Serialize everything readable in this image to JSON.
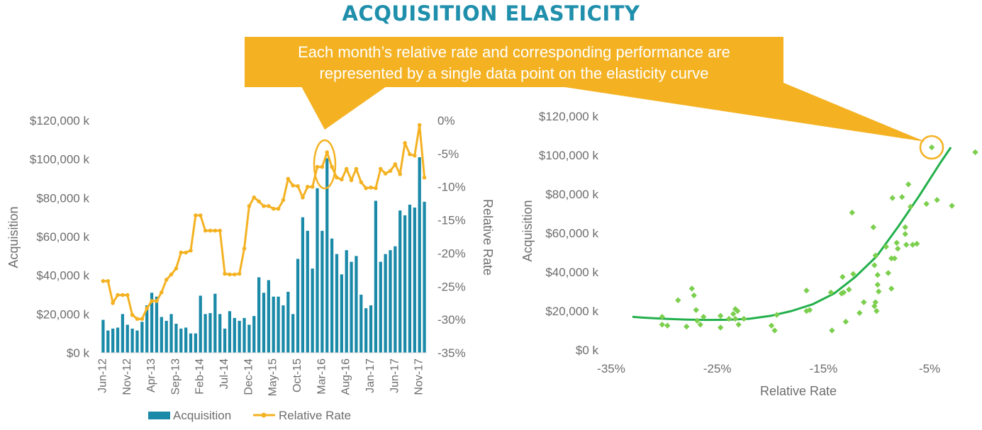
{
  "title": "ACQUISITION ELASTICITY",
  "callout": {
    "line1": "Each month’s relative rate and corresponding performance are",
    "line2": "represented by a single data point on the elasticity curve"
  },
  "colors": {
    "title": "#1f8fac",
    "bar": "#1a8aa8",
    "line": "#f4b223",
    "callout": "#f4b223",
    "scatter": "#7ccf4e",
    "curve": "#22b04b",
    "axis_text": "#6d6d6d"
  },
  "chart_data": [
    {
      "type": "bar+line",
      "xlabel": "",
      "ylabel": "Acquisition",
      "y2label": "Relative Rate",
      "ylim": [
        0,
        120000
      ],
      "y2lim": [
        -35,
        0
      ],
      "yticks": [
        "$0 k",
        "$20,000 k",
        "$40,000 k",
        "$60,000 k",
        "$80,000 k",
        "$100,000 k",
        "$120,000 k"
      ],
      "y2ticks": [
        "-35%",
        "-30%",
        "-25%",
        "-20%",
        "-15%",
        "-10%",
        "-5%",
        "0%"
      ],
      "xticks": [
        "Jun-12",
        "Nov-12",
        "Apr-13",
        "Sep-13",
        "Feb-14",
        "Jul-14",
        "Dec-14",
        "May-15",
        "Oct-15",
        "Mar-16",
        "Aug-16",
        "Jan-17",
        "Jun-17",
        "Nov-17"
      ],
      "grid": false,
      "legend_position": "bottom",
      "series": [
        {
          "name": "Acquisition",
          "kind": "bar",
          "values": [
            17000,
            11500,
            12500,
            13000,
            20000,
            14500,
            12500,
            11500,
            16000,
            24500,
            31000,
            29000,
            18500,
            16500,
            20000,
            15000,
            12500,
            13000,
            10000,
            10000,
            29500,
            20000,
            20500,
            30500,
            20000,
            12500,
            21500,
            18000,
            16500,
            18000,
            14500,
            19000,
            39000,
            31000,
            37500,
            29000,
            29000,
            24500,
            31500,
            20000,
            48500,
            70000,
            63000,
            43500,
            85000,
            63000,
            100500,
            59000,
            51000,
            40500,
            53000,
            47000,
            50000,
            30000,
            23000,
            24500,
            78500,
            47000,
            51000,
            53000,
            55000,
            73500,
            71000,
            76500,
            75000,
            101000,
            78000
          ]
        },
        {
          "name": "Relative Rate",
          "kind": "line",
          "values": [
            -24.2,
            -24.2,
            -27.5,
            -26.3,
            -26.3,
            -26.3,
            -29.3,
            -29.9,
            -29.9,
            -28.3,
            -27.2,
            -27.2,
            -25.9,
            -24,
            -23.2,
            -22.3,
            -19.9,
            -19.9,
            -19.6,
            -14.3,
            -14.3,
            -16.6,
            -16.6,
            -16.6,
            -16.6,
            -23.1,
            -23.2,
            -23.2,
            -23.1,
            -19.3,
            -12.9,
            -11.6,
            -12.2,
            -12.9,
            -12.9,
            -13.3,
            -13.3,
            -12,
            -8.8,
            -9.8,
            -9.9,
            -11.6,
            -10,
            -10,
            -7,
            -7,
            -4.8,
            -7,
            -8.6,
            -8.9,
            -7.3,
            -9,
            -7.3,
            -9.3,
            -10.2,
            -10.1,
            -10.2,
            -7.3,
            -8,
            -7.6,
            -6.6,
            -8.1,
            -3.4,
            -5.1,
            -5.3,
            -0.7,
            -8.6
          ]
        }
      ]
    },
    {
      "type": "scatter",
      "xlabel": "Relative Rate",
      "ylabel": "Acquisition",
      "xlim": [
        -35,
        0
      ],
      "ylim": [
        0,
        120000
      ],
      "xticks": [
        "-35%",
        "-25%",
        "-15%",
        "-5%"
      ],
      "yticks": [
        "$0 k",
        "$20,000 k",
        "$40,000 k",
        "$60,000 k",
        "$80,000 k",
        "$100,000 k",
        "$120,000 k"
      ],
      "grid": false,
      "highlight_point": [
        -4.8,
        104000
      ],
      "points": [
        [
          -30.2,
          17000
        ],
        [
          -30.2,
          13000
        ],
        [
          -29.7,
          12500
        ],
        [
          -28.7,
          25500
        ],
        [
          -27.9,
          12000
        ],
        [
          -27.4,
          31500
        ],
        [
          -27.2,
          28000
        ],
        [
          -27,
          20500
        ],
        [
          -26.6,
          13000
        ],
        [
          -26.3,
          17000
        ],
        [
          -26.9,
          15000
        ],
        [
          -24.7,
          17500
        ],
        [
          -24.7,
          11500
        ],
        [
          -23.9,
          16000
        ],
        [
          -23.5,
          18500
        ],
        [
          -23.3,
          21000
        ],
        [
          -23.1,
          20000
        ],
        [
          -23.3,
          16000
        ],
        [
          -23,
          13000
        ],
        [
          -22.5,
          16000
        ],
        [
          -19.9,
          12500
        ],
        [
          -19.6,
          10000
        ],
        [
          -19.4,
          18000
        ],
        [
          -16.6,
          20000
        ],
        [
          -16.3,
          20500
        ],
        [
          -16.6,
          30500
        ],
        [
          -14.3,
          29500
        ],
        [
          -14.2,
          10000
        ],
        [
          -13.3,
          29000
        ],
        [
          -13.1,
          29500
        ],
        [
          -13.2,
          37500
        ],
        [
          -12.9,
          14500
        ],
        [
          -12.6,
          31000
        ],
        [
          -12.2,
          39000
        ],
        [
          -12.3,
          70500
        ],
        [
          -11.6,
          19000
        ],
        [
          -11.2,
          24500
        ],
        [
          -10,
          20000
        ],
        [
          -10.2,
          22500
        ],
        [
          -10.1,
          24500
        ],
        [
          -10.3,
          63000
        ],
        [
          -10.1,
          48500
        ],
        [
          -10.2,
          43500
        ],
        [
          -9.9,
          38500
        ],
        [
          -9.8,
          30000
        ],
        [
          -9.9,
          33500
        ],
        [
          -9.1,
          53000
        ],
        [
          -8.9,
          39500
        ],
        [
          -8.6,
          31500
        ],
        [
          -8.6,
          47000
        ],
        [
          -8.5,
          78000
        ],
        [
          -8.1,
          55000
        ],
        [
          -8.3,
          47000
        ],
        [
          -8,
          52000
        ],
        [
          -7.6,
          78500
        ],
        [
          -7.3,
          59500
        ],
        [
          -7.3,
          63000
        ],
        [
          -7.2,
          54000
        ],
        [
          -7,
          85000
        ],
        [
          -6.8,
          73500
        ],
        [
          -6.6,
          54000
        ],
        [
          -6.2,
          54500
        ],
        [
          -5.3,
          75000
        ],
        [
          -4.8,
          104000
        ],
        [
          -4.3,
          77000
        ],
        [
          -2.9,
          74000
        ],
        [
          -0.7,
          101500
        ]
      ],
      "curve_points": [
        [
          -33,
          17000
        ],
        [
          -32,
          16600
        ],
        [
          -30,
          16000
        ],
        [
          -28,
          15600
        ],
        [
          -26,
          15400
        ],
        [
          -24,
          15500
        ],
        [
          -22,
          16000
        ],
        [
          -20,
          17500
        ],
        [
          -18,
          20000
        ],
        [
          -16,
          23500
        ],
        [
          -14,
          29000
        ],
        [
          -12,
          37500
        ],
        [
          -10,
          48000
        ],
        [
          -8,
          63000
        ],
        [
          -6,
          79000
        ],
        [
          -4,
          96000
        ],
        [
          -3,
          104000
        ]
      ]
    }
  ],
  "legend": {
    "acquisition": "Acquisition",
    "relative_rate": "Relative Rate"
  }
}
